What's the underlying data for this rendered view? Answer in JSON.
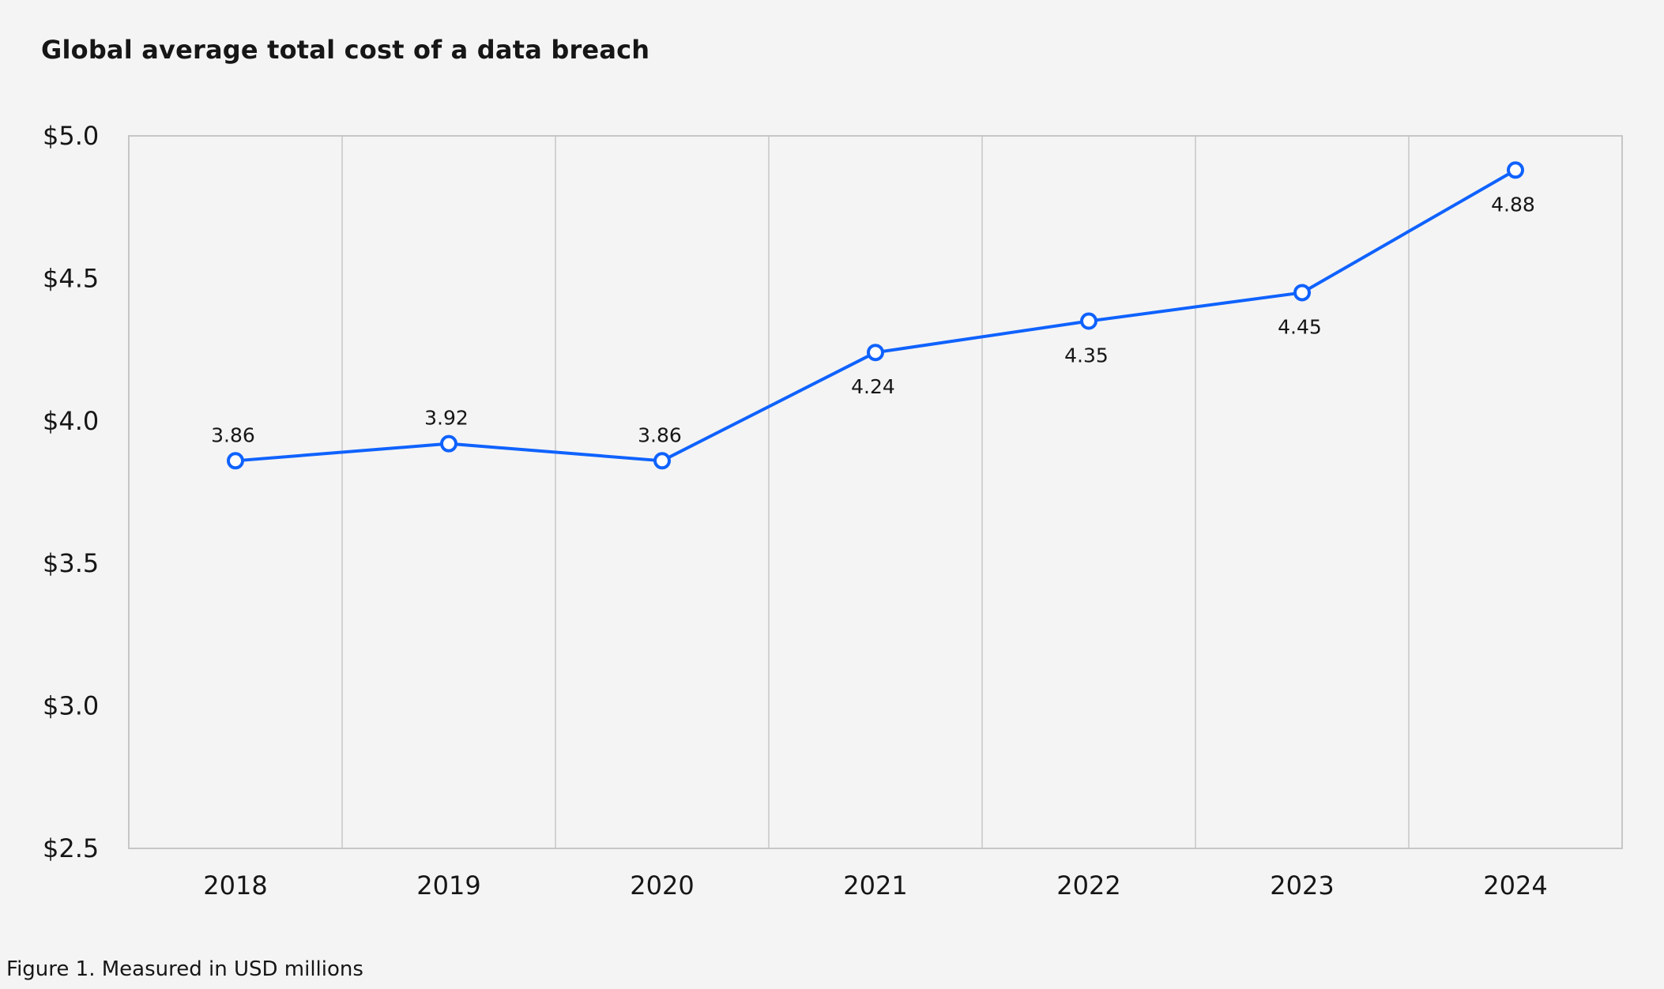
{
  "title": "Global average total cost of a data breach",
  "caption": "Figure 1. Measured in USD millions",
  "chart_data": {
    "type": "line",
    "title": "Global average total cost of a data breach",
    "xlabel": "",
    "ylabel": "",
    "categories": [
      "2018",
      "2019",
      "2020",
      "2021",
      "2022",
      "2023",
      "2024"
    ],
    "series": [
      {
        "values": [
          3.86,
          3.92,
          3.86,
          4.24,
          4.35,
          4.45,
          4.88
        ],
        "data_labels": [
          "3.86",
          "3.92",
          "3.86",
          "4.24",
          "4.35",
          "4.45",
          "4.88"
        ],
        "color": "#0f62fe"
      }
    ],
    "ylim": [
      2.5,
      5.0
    ],
    "yticks": [
      5.0,
      4.5,
      4.0,
      3.5,
      3.0,
      2.5
    ],
    "ytick_labels": [
      "$5.0",
      "$4.5",
      "$4.0",
      "$3.5",
      "$3.0",
      "$2.5"
    ],
    "grid": {
      "vertical": true,
      "horizontal": false
    },
    "legend": "none"
  }
}
